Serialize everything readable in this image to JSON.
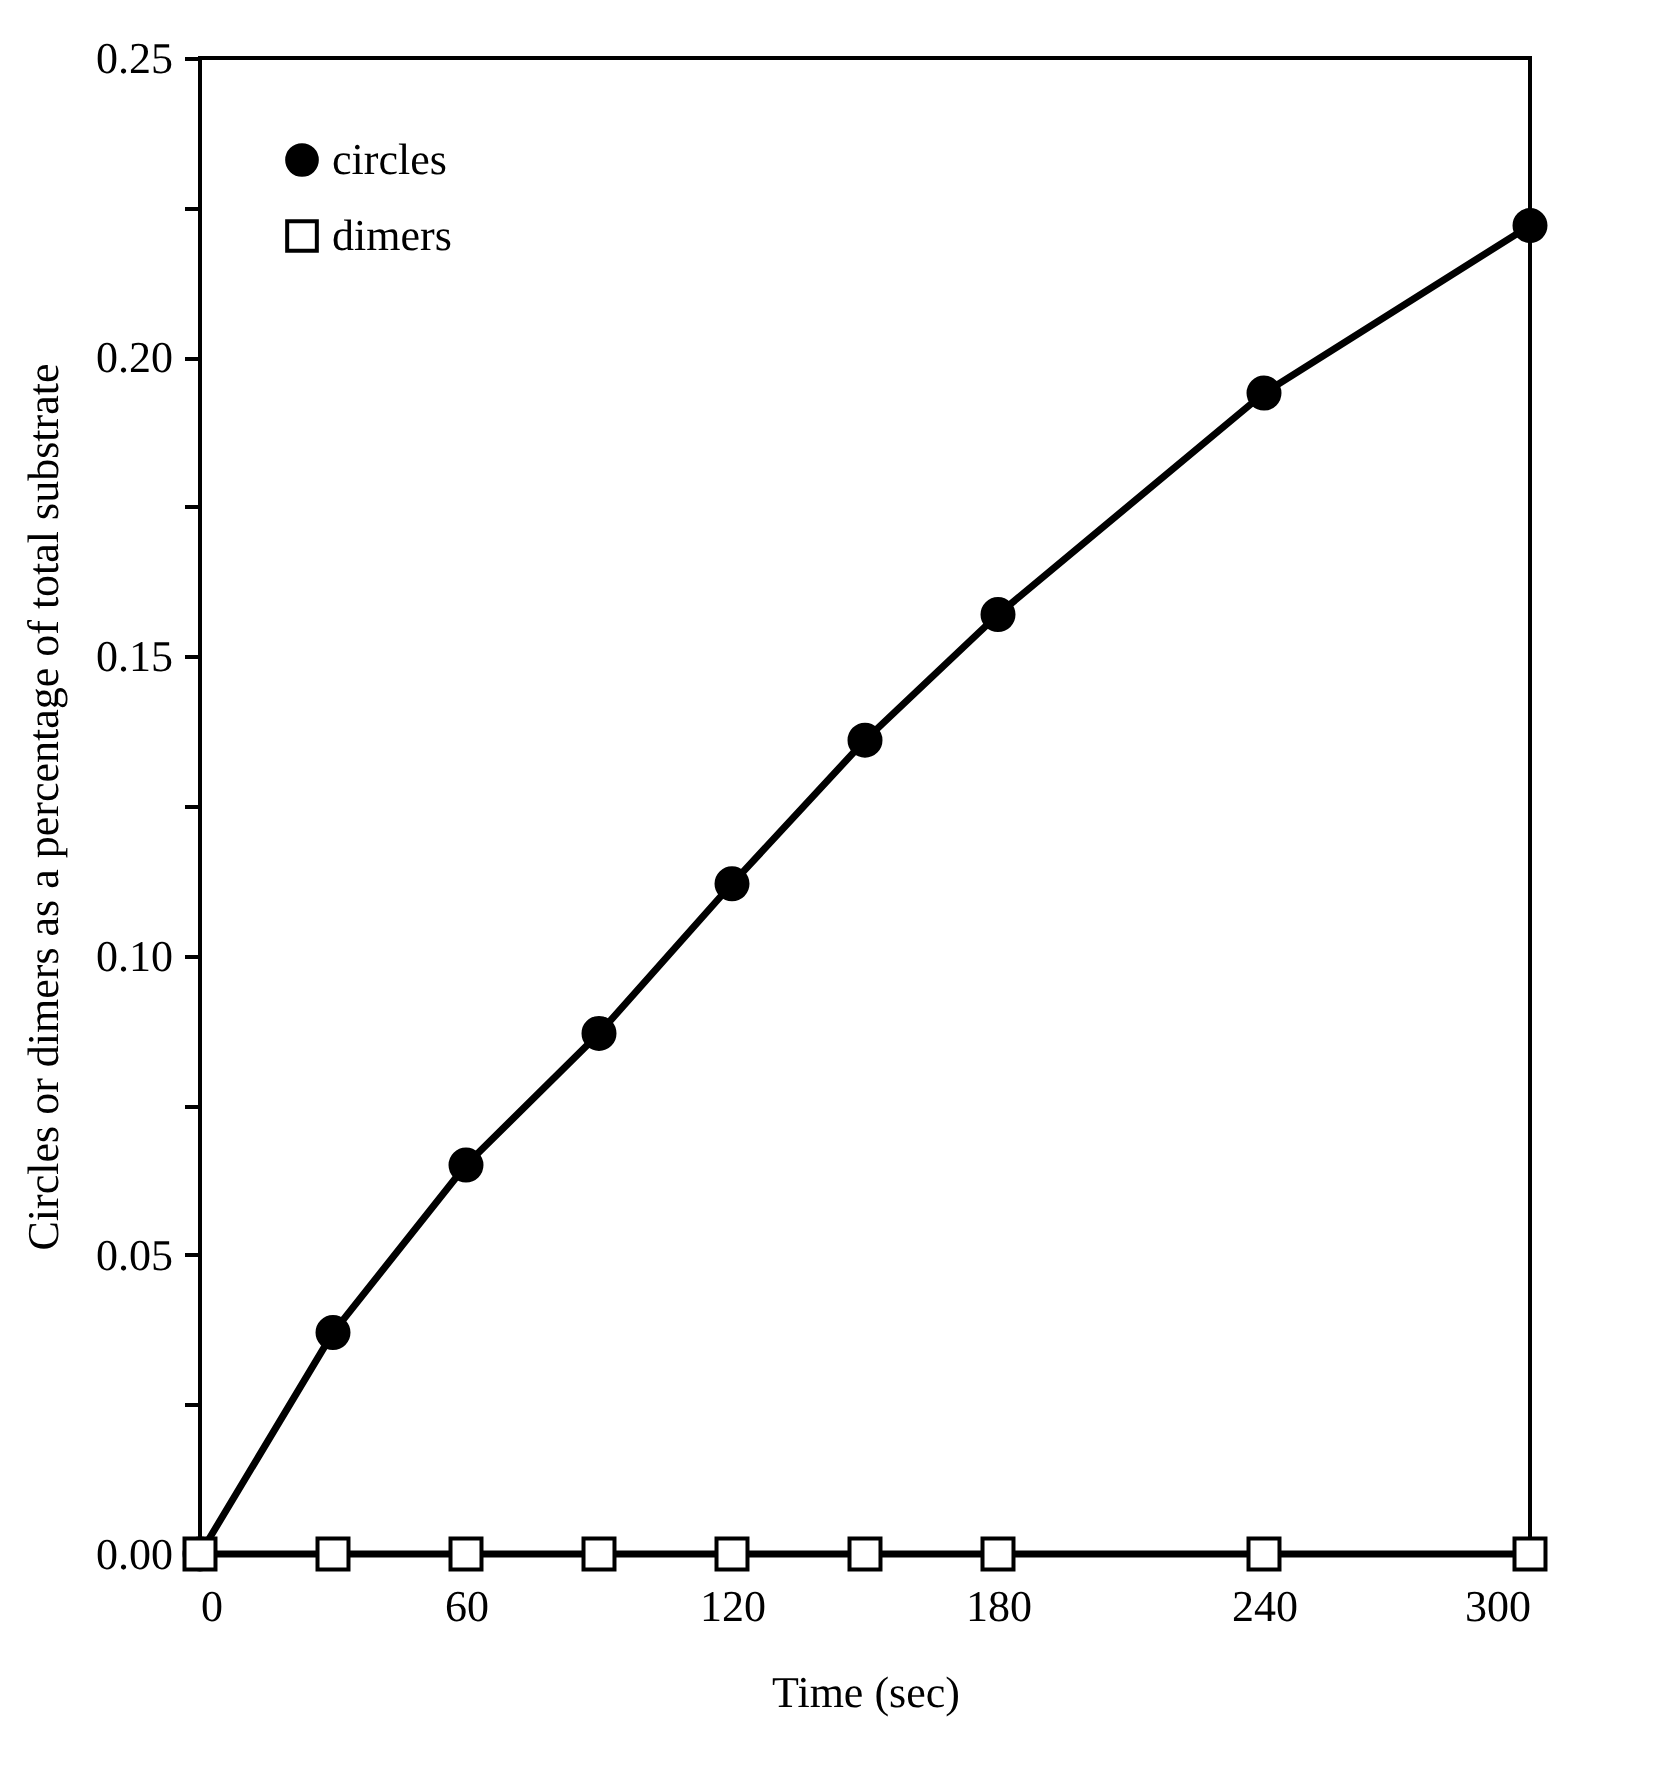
{
  "chart_data": {
    "type": "line",
    "xlabel": "Time (sec)",
    "ylabel": "Circles or dimers as a percentage of total substrate",
    "x": [
      0,
      30,
      60,
      90,
      120,
      150,
      180,
      240,
      300
    ],
    "series": [
      {
        "name": "circles",
        "color": "#000000",
        "marker": "circle",
        "values": [
          0,
          0.037,
          0.065,
          0.087,
          0.112,
          0.136,
          0.157,
          0.194,
          0.222
        ]
      },
      {
        "name": "dimers",
        "color": "#000000",
        "marker": "square",
        "values": [
          0,
          0,
          0,
          0,
          0,
          0,
          0,
          0,
          0
        ]
      }
    ],
    "xlim": [
      0,
      300
    ],
    "xticks": [
      0,
      60,
      120,
      180,
      240,
      300
    ],
    "ylim": [
      0,
      0.25
    ],
    "yticks": [
      {
        "value": 0,
        "label": "0.00"
      },
      {
        "value": 0.025,
        "label": null
      },
      {
        "value": 0.05,
        "label": "0.05"
      },
      {
        "value": 0.075,
        "label": null
      },
      {
        "value": 0.1,
        "label": "0.10"
      },
      {
        "value": 0.125,
        "label": null
      },
      {
        "value": 0.15,
        "label": "0.15"
      },
      {
        "value": 0.175,
        "label": null
      },
      {
        "value": 0.2,
        "label": "0.20"
      },
      {
        "value": 0.225,
        "label": null
      },
      {
        "value": 0.25,
        "label": "0.25"
      }
    ],
    "grid": false,
    "legend": "top left"
  }
}
